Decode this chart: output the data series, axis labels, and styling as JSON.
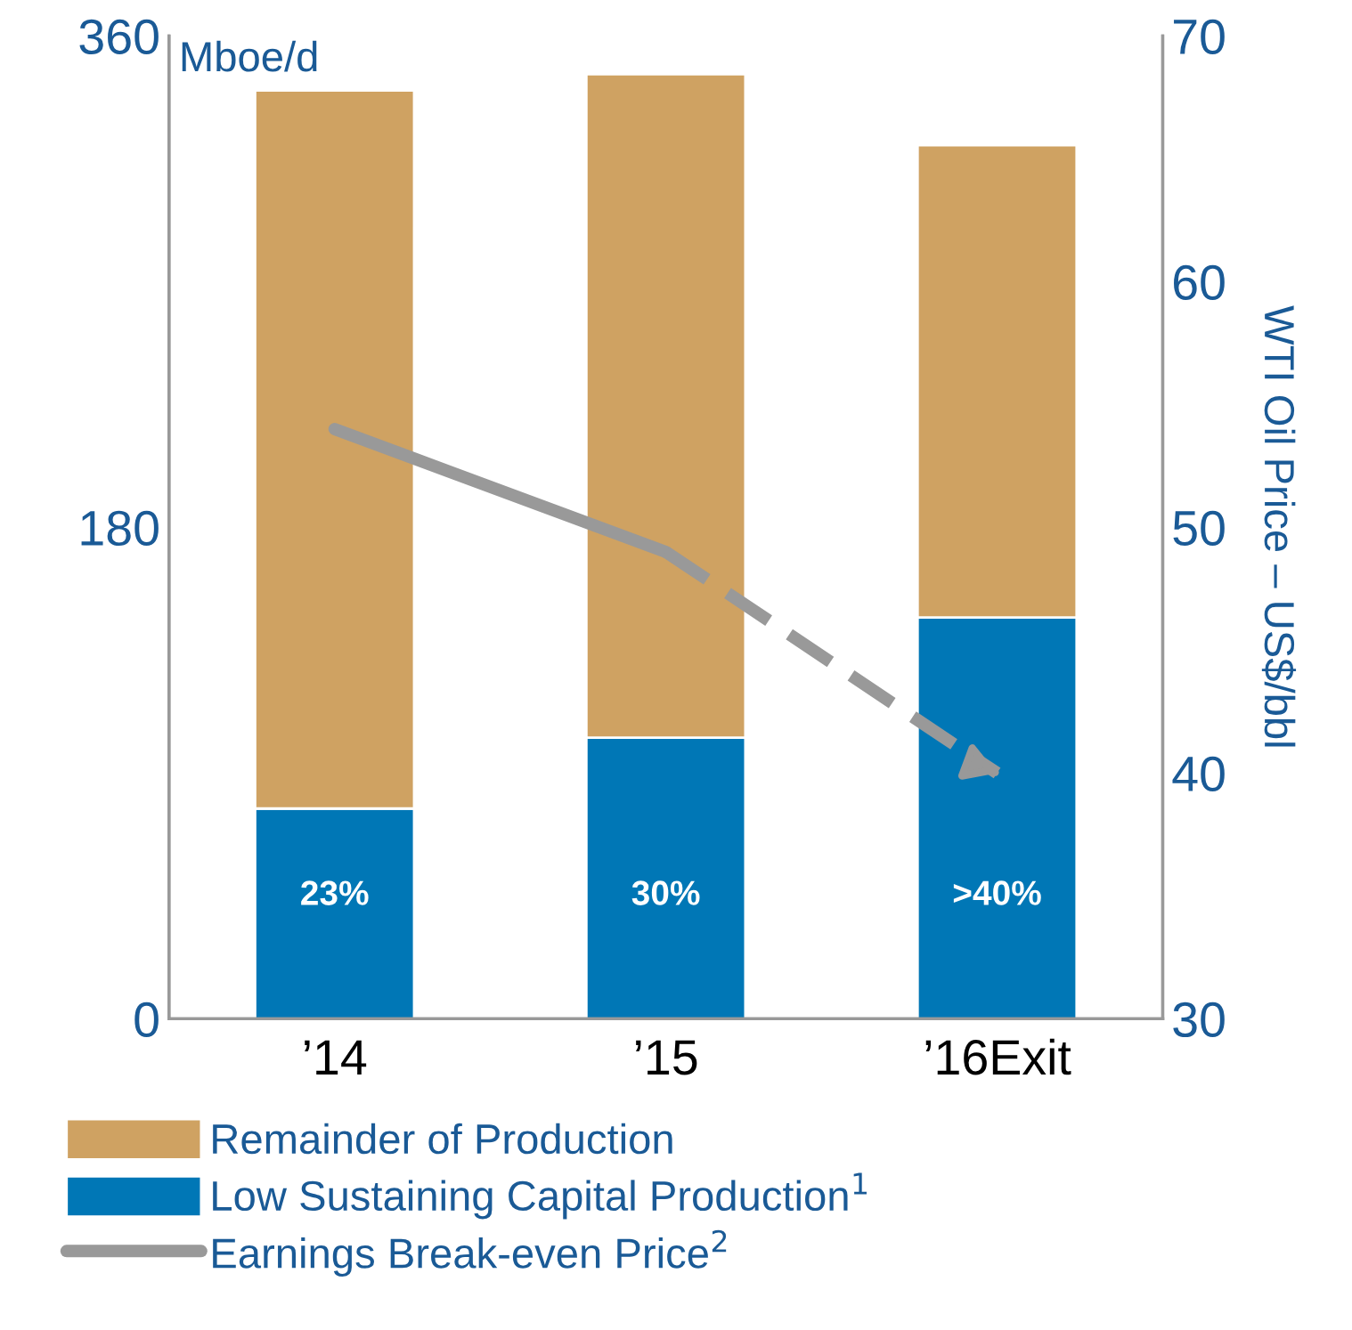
{
  "chart_data": {
    "type": "bar",
    "stacked": true,
    "categories": [
      "’14",
      "’15",
      "’16Exit"
    ],
    "ylabel": "Mboe/d",
    "y2label": "WTI Oil Price – US$/bbl",
    "ylim": [
      0,
      360
    ],
    "yticks": [
      0,
      180,
      360
    ],
    "y2lim": [
      30,
      70
    ],
    "y2ticks": [
      30,
      40,
      50,
      60,
      70
    ],
    "series": [
      {
        "name": "Low Sustaining Capital Production$^{1}$",
        "color": "#0077b6",
        "values": [
          77,
          103,
          147
        ]
      },
      {
        "name": "Remainder of Production",
        "color": "#cfa262",
        "values": [
          263,
          243,
          173
        ]
      },
      {
        "name": "Earnings Break-even Price$^{2}$",
        "type": "line",
        "axis": "y2",
        "color": "#999999",
        "line_style": "solid",
        "values": [
          54,
          49,
          null
        ]
      },
      {
        "type": "line",
        "axis": "y2",
        "color": "#999999",
        "line_style": "dashed",
        "values": [
          null,
          49,
          40
        ]
      }
    ],
    "annotations": [
      "23%",
      "30%",
      ">40%"
    ],
    "grid": false,
    "legend": "bottom"
  }
}
